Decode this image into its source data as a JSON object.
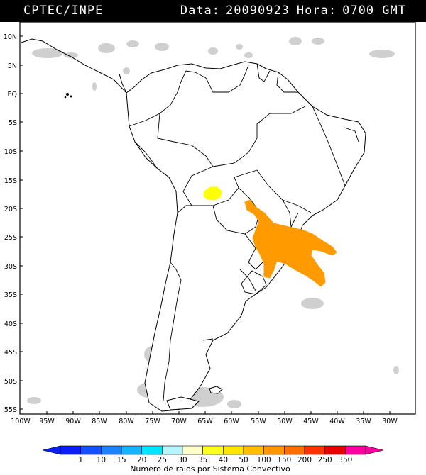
{
  "header": {
    "source": "CPTEC/INPE",
    "date_label": "Data:",
    "date_value": "20090923",
    "time_label": "Hora:",
    "time_value": "0700 GMT"
  },
  "map": {
    "lat_labels": [
      "10N",
      "5N",
      "EQ",
      "5S",
      "10S",
      "15S",
      "20S",
      "25S",
      "30S",
      "35S",
      "40S",
      "45S",
      "50S",
      "55S"
    ],
    "lon_labels": [
      "100W",
      "95W",
      "90W",
      "85W",
      "80W",
      "75W",
      "70W",
      "65W",
      "60W",
      "55W",
      "50W",
      "45W",
      "40W",
      "35W",
      "30W"
    ],
    "layers": {
      "lightning_high": "#ff9a00",
      "lightning_low": "#ffff00",
      "cloud_cover": "#cfcfcf"
    }
  },
  "colorbar": {
    "ticks": [
      "1",
      "10",
      "15",
      "20",
      "25",
      "30",
      "35",
      "40",
      "50",
      "100",
      "150",
      "200",
      "250",
      "350"
    ],
    "colors": [
      "#0a1ef5",
      "#1450ff",
      "#1e82ff",
      "#14b4ff",
      "#00e6ff",
      "#b4f5ff",
      "#ffffc8",
      "#ffff1e",
      "#ffe600",
      "#ffbe00",
      "#ff9600",
      "#ff6e00",
      "#ff3200",
      "#e60000",
      "#ff00a0"
    ],
    "label": "Numero de raios por Sistema Convectivo"
  }
}
